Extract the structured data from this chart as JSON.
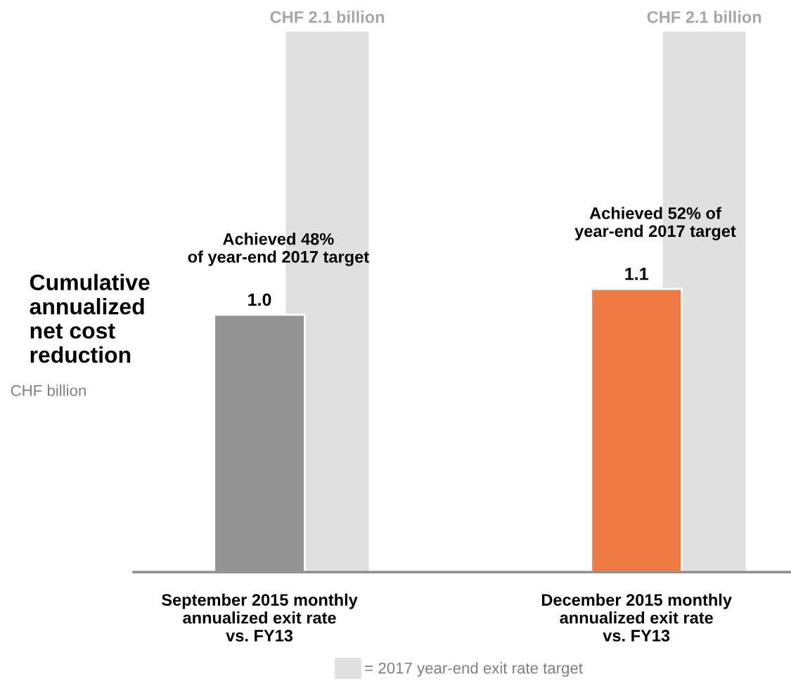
{
  "chart_data": {
    "type": "bar",
    "categories": [
      "September 2015 monthly\nannualized exit rate\nvs. FY13",
      "December 2015 monthly\nannualized exit rate\nvs. FY13"
    ],
    "ylabel": "Cumulative annualized net cost reduction",
    "series": [
      {
        "name": "= 2017 year-end exit rate target",
        "color": "#e0e0e0",
        "values": [
          2.1,
          2.1
        ],
        "value_labels": [
          "CHF 2.1 billion",
          "CHF 2.1 billion"
        ]
      },
      {
        "colors": [
          "#939393",
          "#ef7a43"
        ],
        "values": [
          1.0,
          1.1
        ],
        "value_labels": [
          "1.0",
          "1.1"
        ]
      }
    ],
    "annotations": [
      "CHF billion",
      "Achieved 48%\nof year-end 2017 target",
      "Achieved 52% of\nyear-end 2017 target"
    ],
    "legend": "bottom"
  }
}
